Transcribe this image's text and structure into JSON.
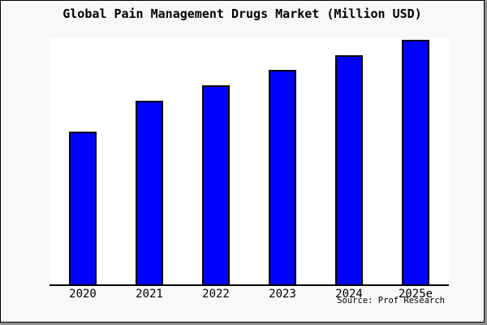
{
  "window": {
    "title": "Global Pain Management Drugs Market (Million USD)"
  },
  "chart_data": {
    "type": "bar",
    "title": "Global Pain Management Drugs Market (Million USD)",
    "units": "Million USD",
    "categories": [
      "2020",
      "2021",
      "2022",
      "2023",
      "2024",
      "2025e"
    ],
    "series": [
      {
        "name": "Global Pain Management Drugs Market",
        "values_relative_pct_of_max": [
          62.5,
          75.1,
          81.4,
          87.7,
          93.7,
          100
        ]
      }
    ],
    "value_axis": "unlabeled — no y-axis line, ticks, values or gridlines shown",
    "xlabel": "",
    "ylabel": "",
    "grid": false,
    "legend": false,
    "bar_color": "#0000ff",
    "bar_border_color": "#000000",
    "axis_line_color": "#000000",
    "plot_background": "#ffffff",
    "canvas_background": "#f8f8f8",
    "source_note": "Source: Prof Research"
  },
  "footer": {
    "source": "Source: Prof Research"
  }
}
